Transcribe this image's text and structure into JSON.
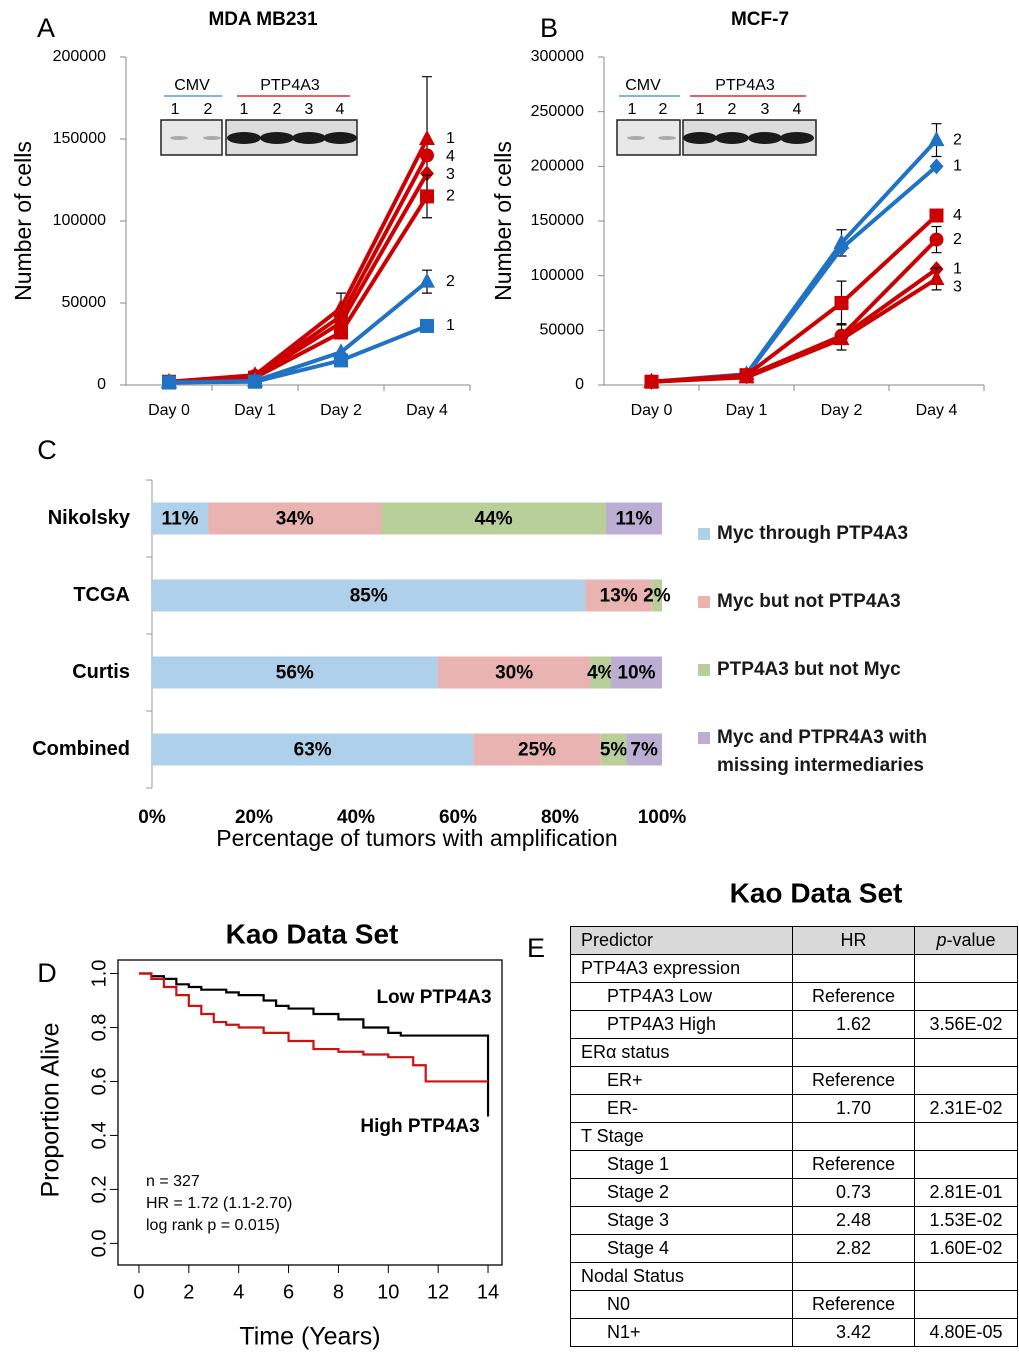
{
  "chart_data": [
    {
      "panel": "A",
      "type": "line",
      "title": "MDA MB231",
      "y_label": "Number of cells",
      "categories": [
        "Day 0",
        "Day 1",
        "Day 2",
        "Day 4"
      ],
      "ylim": [
        0,
        200000
      ],
      "yticks": [
        0,
        50000,
        100000,
        150000,
        200000
      ],
      "inset": {
        "groups": [
          {
            "label": "CMV",
            "color": "#5b9bd5",
            "lanes": [
              "1",
              "2"
            ]
          },
          {
            "label": "PTP4A3",
            "color": "#e03030",
            "lanes": [
              "1",
              "2",
              "3",
              "4"
            ]
          }
        ]
      },
      "series": [
        {
          "name": "1",
          "color": "#cc0000",
          "marker": "triangle",
          "values": [
            2000,
            6000,
            47000,
            150000
          ],
          "errors": [
            null,
            null,
            9000,
            38000
          ]
        },
        {
          "name": "4",
          "color": "#cc0000",
          "marker": "circle",
          "values": [
            2000,
            5500,
            42000,
            140000
          ],
          "errors": [
            null,
            null,
            null,
            null
          ]
        },
        {
          "name": "3",
          "color": "#cc0000",
          "marker": "diamond",
          "values": [
            2000,
            5000,
            38000,
            129000
          ],
          "errors": [
            null,
            null,
            null,
            null
          ]
        },
        {
          "name": "2",
          "color": "#cc0000",
          "marker": "square",
          "values": [
            2000,
            4500,
            32000,
            115000
          ],
          "errors": [
            null,
            null,
            null,
            13000
          ]
        },
        {
          "name": "2",
          "color": "#1f72c4",
          "marker": "triangle",
          "values": [
            1500,
            2500,
            20000,
            63000
          ],
          "errors": [
            null,
            null,
            null,
            7000
          ]
        },
        {
          "name": "1",
          "color": "#1f72c4",
          "marker": "square",
          "values": [
            1500,
            2000,
            15000,
            36000
          ],
          "errors": [
            null,
            null,
            null,
            null
          ]
        }
      ]
    },
    {
      "panel": "B",
      "type": "line",
      "title": "MCF-7",
      "y_label": "Number of cells",
      "categories": [
        "Day 0",
        "Day 1",
        "Day 2",
        "Day 4"
      ],
      "ylim": [
        0,
        300000
      ],
      "yticks": [
        0,
        50000,
        100000,
        150000,
        200000,
        250000,
        300000
      ],
      "inset": {
        "groups": [
          {
            "label": "CMV",
            "color": "#5b9bd5",
            "lanes": [
              "1",
              "2"
            ]
          },
          {
            "label": "PTP4A3",
            "color": "#e03030",
            "lanes": [
              "1",
              "2",
              "3",
              "4"
            ]
          }
        ]
      },
      "series": [
        {
          "name": "2",
          "color": "#1f72c4",
          "marker": "triangle",
          "values": [
            3000,
            10000,
            130000,
            224000
          ],
          "errors": [
            null,
            null,
            12000,
            15000
          ]
        },
        {
          "name": "1",
          "color": "#1f72c4",
          "marker": "diamond",
          "values": [
            3000,
            9000,
            125000,
            200000
          ],
          "errors": [
            null,
            null,
            null,
            null
          ]
        },
        {
          "name": "4",
          "color": "#cc0000",
          "marker": "square",
          "values": [
            3000,
            9000,
            75000,
            155000
          ],
          "errors": [
            null,
            null,
            20000,
            null
          ]
        },
        {
          "name": "2",
          "color": "#cc0000",
          "marker": "circle",
          "values": [
            3000,
            8000,
            45000,
            133000
          ],
          "errors": [
            null,
            null,
            null,
            12000
          ]
        },
        {
          "name": "1",
          "color": "#cc0000",
          "marker": "diamond",
          "values": [
            3000,
            8000,
            44000,
            106000
          ],
          "errors": [
            null,
            null,
            12000,
            null
          ]
        },
        {
          "name": "3",
          "color": "#cc0000",
          "marker": "triangle",
          "values": [
            3000,
            7000,
            42000,
            97000
          ],
          "errors": [
            null,
            null,
            null,
            10000
          ]
        }
      ]
    },
    {
      "panel": "C",
      "type": "stacked_hbar",
      "x_label": "Percentage of tumors with amplification",
      "categories": [
        "Nikolsky",
        "TCGA",
        "Curtis",
        "Combined"
      ],
      "xlim": [
        0,
        100
      ],
      "xticks": [
        {
          "value": 0,
          "label": "0%"
        },
        {
          "value": 20,
          "label": "20%"
        },
        {
          "value": 40,
          "label": "40%"
        },
        {
          "value": 60,
          "label": "60%"
        },
        {
          "value": 80,
          "label": "80%"
        },
        {
          "value": 100,
          "label": "100%"
        }
      ],
      "series": [
        {
          "name": "Myc through PTP4A3",
          "color": "#afd0ea",
          "values": [
            11,
            85,
            56,
            63
          ],
          "value_labels": [
            "11%",
            "85%",
            "56%",
            "63%"
          ]
        },
        {
          "name": "Myc but not PTP4A3",
          "color": "#e8b3b1",
          "values": [
            34,
            13,
            30,
            25
          ],
          "value_labels": [
            "34%",
            "13%",
            "30%",
            "25%"
          ]
        },
        {
          "name": "PTP4A3 but not Myc",
          "color": "#b8cf9a",
          "values": [
            44,
            2,
            4,
            5
          ],
          "value_labels": [
            "44%",
            "2%",
            "4%",
            "5%"
          ]
        },
        {
          "name": "Myc and PTPR4A3 with missing intermediaries",
          "color": "#bcaed3",
          "values": [
            11,
            0,
            10,
            7
          ],
          "value_labels": [
            "11%",
            null,
            "10%",
            "7%"
          ]
        }
      ]
    },
    {
      "panel": "D",
      "type": "km",
      "title": "Kao Data Set",
      "x_label": "Time (Years)",
      "y_label": "Proportion Alive",
      "xlim": [
        -0.84,
        14.56
      ],
      "ylim": [
        -0.08,
        1.05
      ],
      "xticks": [
        0,
        2,
        4,
        6,
        8,
        10,
        12,
        14
      ],
      "yticks": [
        {
          "value": 0,
          "label": "0.0"
        },
        {
          "value": 0.2,
          "label": "0.2"
        },
        {
          "value": 0.4,
          "label": "0.4"
        },
        {
          "value": 0.6,
          "label": "0.6"
        },
        {
          "value": 0.8,
          "label": "0.8"
        },
        {
          "value": 1,
          "label": "1.0"
        }
      ],
      "annotations": [
        "n = 327",
        "HR = 1.72 (1.1-2.70)",
        "log rank p = 0.015)"
      ],
      "series": [
        {
          "name": "Low PTP4A3",
          "color": "#000000",
          "x": [
            0,
            0.5,
            1,
            1.5,
            2,
            2.5,
            3,
            3.5,
            4,
            5,
            5.5,
            6,
            7,
            8,
            9,
            10,
            10.5,
            14,
            14
          ],
          "values": [
            1,
            0.99,
            0.98,
            0.96,
            0.95,
            0.94,
            0.94,
            0.93,
            0.92,
            0.9,
            0.88,
            0.87,
            0.85,
            0.83,
            0.8,
            0.78,
            0.77,
            0.77,
            0.47
          ]
        },
        {
          "name": "High PTP4A3",
          "color": "#cc1111",
          "x": [
            0,
            0.5,
            1,
            1.5,
            2,
            2.5,
            3,
            3.5,
            4,
            5,
            6,
            7,
            8,
            9,
            10,
            11,
            11.5,
            14
          ],
          "values": [
            1,
            0.98,
            0.95,
            0.92,
            0.88,
            0.85,
            0.82,
            0.81,
            0.8,
            0.78,
            0.75,
            0.72,
            0.71,
            0.7,
            0.69,
            0.66,
            0.6,
            0.6
          ]
        }
      ]
    }
  ],
  "table": {
    "panel": "E",
    "title": "Kao Data Set",
    "header": [
      "Predictor",
      "HR",
      "p-value"
    ],
    "rows": [
      {
        "predictor": "PTP4A3 expression"
      },
      {
        "predictor": "PTP4A3 Low",
        "hr": "Reference",
        "indent": true
      },
      {
        "predictor": "PTP4A3 High",
        "hr": "1.62",
        "p": "3.56E-02",
        "indent": true
      },
      {
        "predictor": "ERα status"
      },
      {
        "predictor": "ER+",
        "hr": "Reference",
        "indent": true
      },
      {
        "predictor": "ER-",
        "hr": "1.70",
        "p": "2.31E-02",
        "indent": true
      },
      {
        "predictor": "T Stage"
      },
      {
        "predictor": "Stage 1",
        "hr": "Reference",
        "indent": true
      },
      {
        "predictor": "Stage 2",
        "hr": "0.73",
        "p": "2.81E-01",
        "indent": true
      },
      {
        "predictor": "Stage 3",
        "hr": "2.48",
        "p": "1.53E-02",
        "indent": true
      },
      {
        "predictor": "Stage 4",
        "hr": "2.82",
        "p": "1.60E-02",
        "indent": true
      },
      {
        "predictor": "Nodal Status"
      },
      {
        "predictor": "N0",
        "hr": "Reference",
        "indent": true
      },
      {
        "predictor": "N1+",
        "hr": "3.42",
        "p": "4.80E-05",
        "indent": true
      }
    ]
  }
}
